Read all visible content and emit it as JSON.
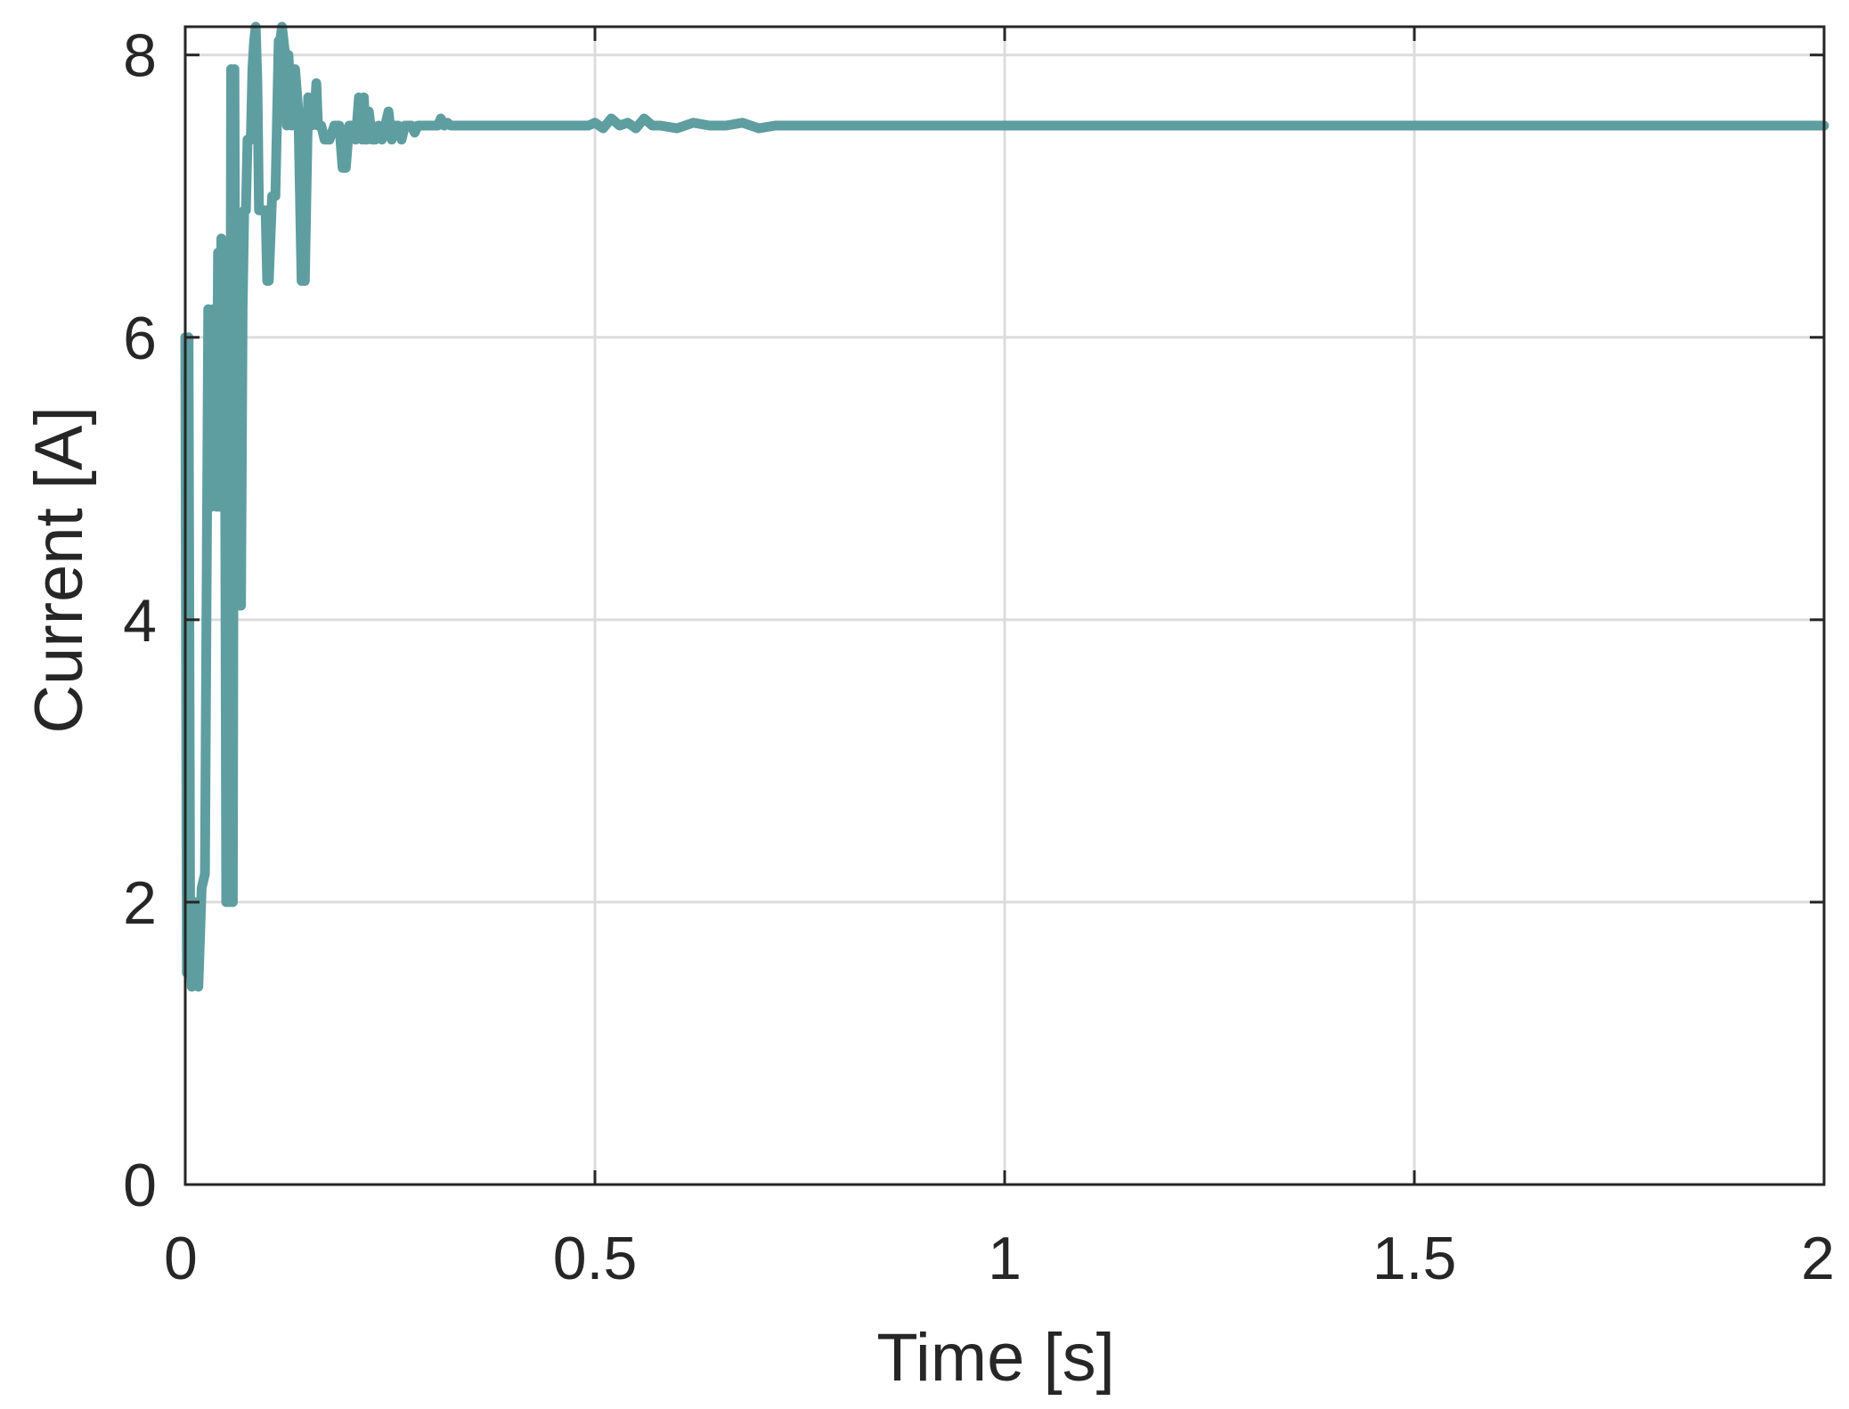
{
  "chart_data": {
    "type": "line",
    "title": "",
    "xlabel": "Time [s]",
    "ylabel": "Current [A]",
    "xlim": [
      0,
      2
    ],
    "ylim": [
      0,
      8.2
    ],
    "xticks": [
      0,
      0.5,
      1,
      1.5,
      2
    ],
    "xtick_labels": [
      "0",
      "0.5",
      "1",
      "1.5",
      "2"
    ],
    "yticks": [
      0,
      2,
      4,
      6,
      8
    ],
    "ytick_labels": [
      "0",
      "2",
      "4",
      "6",
      "8"
    ],
    "grid": true,
    "legend": "none",
    "series": [
      {
        "color": "#5f9ea0",
        "x": [
          0,
          0.002,
          0.004,
          0.006,
          0.008,
          0.012,
          0.016,
          0.02,
          0.024,
          0.028,
          0.032,
          0.034,
          0.036,
          0.038,
          0.04,
          0.042,
          0.044,
          0.046,
          0.048,
          0.05,
          0.052,
          0.054,
          0.056,
          0.058,
          0.06,
          0.062,
          0.064,
          0.066,
          0.068,
          0.07,
          0.072,
          0.074,
          0.076,
          0.078,
          0.08,
          0.082,
          0.084,
          0.086,
          0.088,
          0.09,
          0.094,
          0.098,
          0.1,
          0.102,
          0.106,
          0.11,
          0.114,
          0.116,
          0.118,
          0.12,
          0.122,
          0.124,
          0.126,
          0.13,
          0.134,
          0.138,
          0.142,
          0.146,
          0.15,
          0.154,
          0.158,
          0.16,
          0.162,
          0.166,
          0.17,
          0.176,
          0.182,
          0.188,
          0.192,
          0.196,
          0.2,
          0.204,
          0.208,
          0.212,
          0.216,
          0.218,
          0.22,
          0.222,
          0.224,
          0.228,
          0.232,
          0.236,
          0.24,
          0.244,
          0.248,
          0.252,
          0.256,
          0.26,
          0.264,
          0.268,
          0.272,
          0.276,
          0.28,
          0.284,
          0.288,
          0.292,
          0.296,
          0.3,
          0.304,
          0.308,
          0.312,
          0.316,
          0.32,
          0.324,
          0.328,
          0.332,
          0.336,
          0.34,
          0.344,
          0.348,
          0.352,
          0.356,
          0.36,
          0.364,
          0.368,
          0.372,
          0.376,
          0.38,
          0.384,
          0.388,
          0.392,
          0.396,
          0.4,
          0.404,
          0.408,
          0.412,
          0.416,
          0.42,
          0.424,
          0.428,
          0.432,
          0.436,
          0.44,
          0.444,
          0.448,
          0.452,
          0.456,
          0.46,
          0.464,
          0.468,
          0.472,
          0.476,
          0.48,
          0.484,
          0.488,
          0.492,
          0.5,
          0.51,
          0.52,
          0.53,
          0.54,
          0.55,
          0.56,
          0.57,
          0.58,
          0.6,
          0.62,
          0.64,
          0.66,
          0.68,
          0.7,
          0.72,
          0.74,
          0.76,
          0.8,
          0.85,
          0.9,
          1.0,
          1.2,
          1.4,
          1.6,
          1.8,
          2.0
        ],
        "values": [
          6.0,
          1.5,
          6.0,
          1.8,
          1.4,
          2.0,
          1.4,
          2.1,
          2.2,
          6.2,
          4.8,
          6.2,
          5.9,
          4.8,
          6.6,
          4.8,
          6.7,
          4.8,
          6.6,
          2.0,
          6.6,
          2.0,
          7.9,
          2.0,
          7.9,
          4.3,
          4.4,
          4.1,
          4.1,
          6.2,
          6.9,
          6.9,
          7.4,
          7.4,
          7.4,
          7.9,
          8.1,
          8.2,
          7.8,
          6.9,
          6.9,
          6.9,
          6.4,
          6.4,
          7.0,
          7.0,
          8.1,
          8.1,
          8.2,
          8.1,
          8.0,
          7.5,
          8.0,
          7.5,
          7.9,
          7.6,
          6.4,
          6.4,
          7.7,
          7.5,
          7.6,
          7.8,
          7.5,
          7.5,
          7.4,
          7.4,
          7.5,
          7.5,
          7.2,
          7.2,
          7.5,
          7.5,
          7.4,
          7.7,
          7.4,
          7.7,
          7.4,
          7.4,
          7.6,
          7.4,
          7.4,
          7.5,
          7.4,
          7.5,
          7.6,
          7.4,
          7.5,
          7.5,
          7.4,
          7.5,
          7.5,
          7.5,
          7.45,
          7.5,
          7.5,
          7.5,
          7.5,
          7.5,
          7.5,
          7.5,
          7.55,
          7.5,
          7.52,
          7.5,
          7.5,
          7.5,
          7.5,
          7.5,
          7.5,
          7.5,
          7.5,
          7.5,
          7.5,
          7.5,
          7.5,
          7.5,
          7.5,
          7.5,
          7.5,
          7.5,
          7.5,
          7.5,
          7.5,
          7.5,
          7.5,
          7.5,
          7.5,
          7.5,
          7.5,
          7.5,
          7.5,
          7.5,
          7.5,
          7.5,
          7.5,
          7.5,
          7.5,
          7.5,
          7.5,
          7.5,
          7.5,
          7.5,
          7.5,
          7.5,
          7.5,
          7.5,
          7.52,
          7.48,
          7.55,
          7.5,
          7.52,
          7.48,
          7.55,
          7.5,
          7.5,
          7.48,
          7.52,
          7.5,
          7.5,
          7.52,
          7.48,
          7.5,
          7.5,
          7.5,
          7.5,
          7.5,
          7.5,
          7.5,
          7.5,
          7.5,
          7.5,
          7.5,
          7.5
        ]
      }
    ]
  }
}
